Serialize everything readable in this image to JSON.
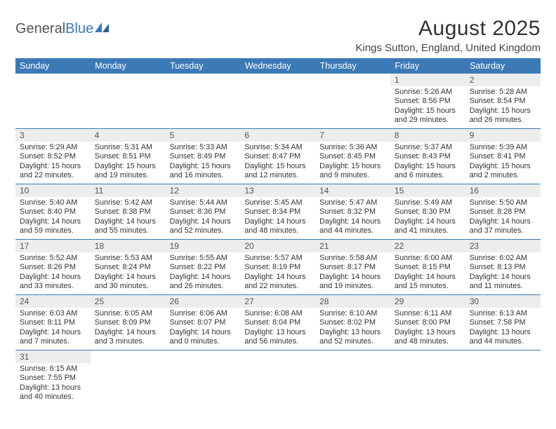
{
  "logo": {
    "text1": "General",
    "text2": "Blue"
  },
  "title": "August 2025",
  "location": "Kings Sutton, England, United Kingdom",
  "colors": {
    "header_bg": "#3b79b7",
    "header_text": "#ffffff",
    "daynum_bg": "#eceded",
    "border": "#3b79b7",
    "text": "#333333"
  },
  "weekdays": [
    "Sunday",
    "Monday",
    "Tuesday",
    "Wednesday",
    "Thursday",
    "Friday",
    "Saturday"
  ],
  "days": {
    "1": {
      "sunrise": "5:26 AM",
      "sunset": "8:56 PM",
      "daylight": "15 hours and 29 minutes."
    },
    "2": {
      "sunrise": "5:28 AM",
      "sunset": "8:54 PM",
      "daylight": "15 hours and 26 minutes."
    },
    "3": {
      "sunrise": "5:29 AM",
      "sunset": "8:52 PM",
      "daylight": "15 hours and 22 minutes."
    },
    "4": {
      "sunrise": "5:31 AM",
      "sunset": "8:51 PM",
      "daylight": "15 hours and 19 minutes."
    },
    "5": {
      "sunrise": "5:33 AM",
      "sunset": "8:49 PM",
      "daylight": "15 hours and 16 minutes."
    },
    "6": {
      "sunrise": "5:34 AM",
      "sunset": "8:47 PM",
      "daylight": "15 hours and 12 minutes."
    },
    "7": {
      "sunrise": "5:36 AM",
      "sunset": "8:45 PM",
      "daylight": "15 hours and 9 minutes."
    },
    "8": {
      "sunrise": "5:37 AM",
      "sunset": "8:43 PM",
      "daylight": "15 hours and 6 minutes."
    },
    "9": {
      "sunrise": "5:39 AM",
      "sunset": "8:41 PM",
      "daylight": "15 hours and 2 minutes."
    },
    "10": {
      "sunrise": "5:40 AM",
      "sunset": "8:40 PM",
      "daylight": "14 hours and 59 minutes."
    },
    "11": {
      "sunrise": "5:42 AM",
      "sunset": "8:38 PM",
      "daylight": "14 hours and 55 minutes."
    },
    "12": {
      "sunrise": "5:44 AM",
      "sunset": "8:36 PM",
      "daylight": "14 hours and 52 minutes."
    },
    "13": {
      "sunrise": "5:45 AM",
      "sunset": "8:34 PM",
      "daylight": "14 hours and 48 minutes."
    },
    "14": {
      "sunrise": "5:47 AM",
      "sunset": "8:32 PM",
      "daylight": "14 hours and 44 minutes."
    },
    "15": {
      "sunrise": "5:49 AM",
      "sunset": "8:30 PM",
      "daylight": "14 hours and 41 minutes."
    },
    "16": {
      "sunrise": "5:50 AM",
      "sunset": "8:28 PM",
      "daylight": "14 hours and 37 minutes."
    },
    "17": {
      "sunrise": "5:52 AM",
      "sunset": "8:26 PM",
      "daylight": "14 hours and 33 minutes."
    },
    "18": {
      "sunrise": "5:53 AM",
      "sunset": "8:24 PM",
      "daylight": "14 hours and 30 minutes."
    },
    "19": {
      "sunrise": "5:55 AM",
      "sunset": "8:22 PM",
      "daylight": "14 hours and 26 minutes."
    },
    "20": {
      "sunrise": "5:57 AM",
      "sunset": "8:19 PM",
      "daylight": "14 hours and 22 minutes."
    },
    "21": {
      "sunrise": "5:58 AM",
      "sunset": "8:17 PM",
      "daylight": "14 hours and 19 minutes."
    },
    "22": {
      "sunrise": "6:00 AM",
      "sunset": "8:15 PM",
      "daylight": "14 hours and 15 minutes."
    },
    "23": {
      "sunrise": "6:02 AM",
      "sunset": "8:13 PM",
      "daylight": "14 hours and 11 minutes."
    },
    "24": {
      "sunrise": "6:03 AM",
      "sunset": "8:11 PM",
      "daylight": "14 hours and 7 minutes."
    },
    "25": {
      "sunrise": "6:05 AM",
      "sunset": "8:09 PM",
      "daylight": "14 hours and 3 minutes."
    },
    "26": {
      "sunrise": "6:06 AM",
      "sunset": "8:07 PM",
      "daylight": "14 hours and 0 minutes."
    },
    "27": {
      "sunrise": "6:08 AM",
      "sunset": "8:04 PM",
      "daylight": "13 hours and 56 minutes."
    },
    "28": {
      "sunrise": "6:10 AM",
      "sunset": "8:02 PM",
      "daylight": "13 hours and 52 minutes."
    },
    "29": {
      "sunrise": "6:11 AM",
      "sunset": "8:00 PM",
      "daylight": "13 hours and 48 minutes."
    },
    "30": {
      "sunrise": "6:13 AM",
      "sunset": "7:58 PM",
      "daylight": "13 hours and 44 minutes."
    },
    "31": {
      "sunrise": "6:15 AM",
      "sunset": "7:55 PM",
      "daylight": "13 hours and 40 minutes."
    }
  },
  "labels": {
    "sunrise": "Sunrise:",
    "sunset": "Sunset:",
    "daylight": "Daylight:"
  },
  "layout": {
    "first_weekday_index": 5,
    "num_days": 31,
    "columns": 7
  }
}
